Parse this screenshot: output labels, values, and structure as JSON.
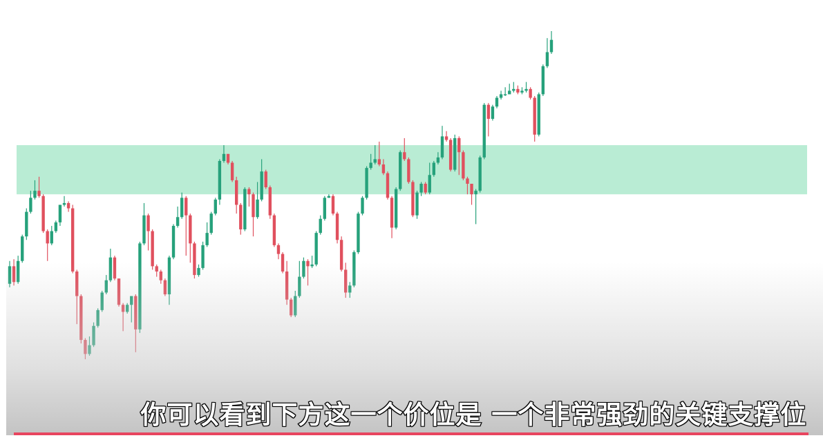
{
  "subtitle": "你可以看到下方这一个价位是 一个非常强劲的关键支撑位",
  "colors": {
    "up": "#26a17b",
    "down": "#e0505e",
    "zone": "#b9ecd4",
    "wick_up": "#26a17b",
    "wick_down": "#e0505e",
    "bar": "#e8455f"
  },
  "chart_data": {
    "type": "candlestick",
    "ylim": [
      0,
      100
    ],
    "zone": {
      "low": 62.5,
      "high": 76.5
    },
    "candles": [
      [
        37.0,
        42.0,
        43.5,
        36.0
      ],
      [
        42.0,
        37.5,
        44.0,
        36.5
      ],
      [
        37.5,
        43.5,
        45.0,
        37.0
      ],
      [
        43.5,
        50.5,
        51.0,
        43.0
      ],
      [
        50.5,
        57.5,
        58.5,
        49.5
      ],
      [
        57.5,
        61.5,
        63.5,
        57.0
      ],
      [
        61.5,
        63.5,
        66.5,
        61.0
      ],
      [
        63.5,
        62.0,
        67.5,
        61.5
      ],
      [
        62.0,
        52.0,
        62.5,
        51.5
      ],
      [
        52.0,
        48.5,
        52.5,
        43.5
      ],
      [
        48.5,
        52.0,
        53.5,
        48.0
      ],
      [
        52.0,
        54.5,
        55.0,
        51.5
      ],
      [
        54.5,
        59.5,
        59.5,
        53.5
      ],
      [
        59.5,
        60.0,
        62.0,
        59.0
      ],
      [
        60.0,
        58.5,
        60.5,
        57.5
      ],
      [
        58.5,
        40.5,
        59.5,
        40.0
      ],
      [
        40.5,
        33.5,
        41.0,
        25.5
      ],
      [
        33.5,
        21.0,
        34.0,
        20.0
      ],
      [
        21.0,
        17.0,
        21.5,
        15.5
      ],
      [
        17.0,
        19.5,
        22.0,
        16.5
      ],
      [
        19.5,
        25.0,
        26.0,
        19.0
      ],
      [
        25.0,
        29.5,
        30.0,
        24.5
      ],
      [
        29.5,
        34.5,
        35.0,
        29.0
      ],
      [
        34.5,
        38.0,
        39.5,
        34.0
      ],
      [
        38.0,
        44.5,
        47.0,
        37.5
      ],
      [
        44.5,
        38.5,
        45.0,
        38.0
      ],
      [
        38.5,
        31.0,
        38.5,
        30.5
      ],
      [
        31.0,
        29.0,
        31.5,
        23.5
      ],
      [
        29.0,
        31.0,
        31.5,
        28.5
      ],
      [
        31.0,
        33.5,
        33.5,
        26.0
      ],
      [
        33.5,
        24.0,
        34.0,
        17.5
      ],
      [
        24.0,
        48.5,
        49.0,
        23.0
      ],
      [
        48.5,
        56.5,
        60.0,
        48.0
      ],
      [
        56.5,
        52.0,
        57.0,
        46.5
      ],
      [
        52.0,
        42.0,
        52.5,
        41.0
      ],
      [
        42.0,
        40.5,
        42.5,
        39.0
      ],
      [
        40.5,
        38.0,
        41.0,
        37.0
      ],
      [
        38.0,
        34.0,
        38.5,
        33.5
      ],
      [
        34.0,
        44.5,
        45.0,
        31.0
      ],
      [
        44.5,
        53.5,
        54.0,
        44.0
      ],
      [
        53.5,
        56.0,
        59.0,
        53.0
      ],
      [
        56.0,
        61.5,
        63.0,
        55.5
      ],
      [
        61.5,
        56.5,
        62.0,
        45.0
      ],
      [
        56.5,
        48.5,
        57.0,
        43.0
      ],
      [
        48.5,
        39.5,
        49.0,
        38.5
      ],
      [
        39.5,
        41.5,
        42.5,
        39.0
      ],
      [
        41.5,
        48.0,
        49.0,
        41.0
      ],
      [
        48.0,
        51.5,
        54.5,
        47.5
      ],
      [
        51.5,
        57.0,
        57.5,
        51.0
      ],
      [
        57.0,
        61.0,
        61.5,
        56.5
      ],
      [
        61.0,
        72.0,
        72.5,
        59.5
      ],
      [
        72.0,
        74.0,
        76.5,
        71.5
      ],
      [
        74.0,
        71.5,
        74.0,
        71.0
      ],
      [
        71.5,
        66.5,
        72.0,
        66.0
      ],
      [
        66.5,
        59.5,
        67.5,
        57.0
      ],
      [
        59.5,
        52.5,
        60.0,
        51.0
      ],
      [
        52.5,
        64.0,
        64.5,
        52.0
      ],
      [
        64.0,
        62.5,
        64.5,
        59.0
      ],
      [
        62.5,
        56.0,
        63.0,
        50.5
      ],
      [
        56.0,
        61.0,
        66.0,
        55.5
      ],
      [
        61.0,
        69.0,
        72.5,
        60.5
      ],
      [
        69.0,
        64.5,
        69.5,
        64.0
      ],
      [
        64.5,
        56.5,
        65.0,
        55.5
      ],
      [
        56.5,
        48.0,
        57.0,
        47.5
      ],
      [
        48.0,
        45.5,
        48.5,
        44.0
      ],
      [
        45.5,
        40.5,
        46.0,
        40.0
      ],
      [
        40.5,
        32.5,
        43.5,
        31.0
      ],
      [
        32.5,
        28.0,
        33.0,
        27.5
      ],
      [
        28.0,
        33.5,
        35.0,
        27.5
      ],
      [
        33.5,
        39.0,
        43.5,
        33.0
      ],
      [
        39.0,
        43.5,
        44.5,
        38.5
      ],
      [
        43.5,
        42.0,
        44.0,
        36.5
      ],
      [
        42.0,
        42.5,
        45.0,
        41.5
      ],
      [
        42.5,
        51.5,
        52.0,
        42.0
      ],
      [
        51.5,
        55.5,
        56.5,
        51.0
      ],
      [
        55.5,
        61.5,
        62.0,
        55.0
      ],
      [
        61.5,
        62.0,
        62.5,
        61.5
      ],
      [
        62.0,
        57.0,
        62.5,
        56.5
      ],
      [
        57.0,
        49.5,
        57.5,
        48.5
      ],
      [
        49.5,
        41.0,
        50.5,
        40.5
      ],
      [
        41.0,
        34.5,
        43.0,
        33.0
      ],
      [
        34.5,
        36.5,
        37.5,
        33.0
      ],
      [
        36.5,
        46.0,
        46.5,
        36.0
      ],
      [
        46.0,
        57.0,
        57.5,
        45.5
      ],
      [
        57.0,
        61.5,
        62.0,
        56.5
      ],
      [
        61.5,
        70.0,
        70.5,
        61.0
      ],
      [
        70.0,
        71.5,
        74.0,
        69.5
      ],
      [
        71.5,
        72.5,
        76.5,
        71.0
      ],
      [
        72.5,
        71.0,
        77.5,
        70.5
      ],
      [
        71.0,
        68.5,
        72.5,
        68.0
      ],
      [
        68.5,
        61.5,
        69.0,
        61.0
      ],
      [
        61.5,
        53.0,
        62.0,
        50.0
      ],
      [
        53.0,
        64.0,
        64.5,
        52.5
      ],
      [
        64.0,
        74.5,
        75.0,
        63.5
      ],
      [
        74.5,
        72.5,
        78.5,
        72.0
      ],
      [
        72.5,
        66.0,
        73.0,
        65.5
      ],
      [
        66.0,
        56.5,
        66.5,
        56.0
      ],
      [
        56.5,
        63.0,
        63.5,
        55.5
      ],
      [
        63.0,
        65.5,
        66.0,
        62.0
      ],
      [
        65.5,
        63.0,
        66.0,
        62.5
      ],
      [
        63.0,
        68.0,
        71.5,
        62.5
      ],
      [
        68.0,
        71.5,
        72.0,
        67.5
      ],
      [
        71.5,
        73.0,
        74.5,
        71.0
      ],
      [
        73.0,
        79.0,
        82.0,
        72.5
      ],
      [
        79.0,
        78.0,
        80.5,
        77.5
      ],
      [
        78.0,
        69.5,
        78.5,
        69.0
      ],
      [
        69.5,
        78.5,
        79.5,
        69.0
      ],
      [
        78.5,
        74.5,
        79.0,
        68.0
      ],
      [
        74.5,
        67.0,
        75.0,
        66.5
      ],
      [
        67.0,
        65.5,
        67.5,
        62.5
      ],
      [
        65.5,
        62.5,
        65.5,
        59.5
      ],
      [
        62.5,
        63.5,
        64.0,
        54.0
      ],
      [
        63.5,
        73.0,
        73.5,
        63.0
      ],
      [
        73.0,
        88.0,
        88.5,
        72.5
      ],
      [
        88.0,
        84.0,
        88.5,
        79.0
      ],
      [
        84.0,
        87.5,
        88.0,
        83.5
      ],
      [
        87.5,
        90.0,
        90.5,
        87.0
      ],
      [
        90.0,
        91.0,
        92.0,
        89.5
      ],
      [
        91.0,
        91.0,
        93.0,
        90.5
      ],
      [
        91.0,
        92.0,
        94.0,
        91.0
      ],
      [
        92.0,
        92.5,
        94.5,
        91.5
      ],
      [
        92.5,
        91.5,
        93.5,
        91.0
      ],
      [
        91.5,
        92.0,
        93.0,
        91.0
      ],
      [
        92.0,
        92.5,
        94.5,
        91.5
      ],
      [
        92.5,
        90.0,
        93.0,
        89.5
      ],
      [
        90.0,
        79.5,
        90.5,
        77.5
      ],
      [
        79.5,
        91.0,
        91.5,
        79.0
      ],
      [
        91.0,
        99.0,
        99.5,
        90.5
      ],
      [
        99.0,
        103.0,
        107.0,
        98.5
      ],
      [
        103.0,
        106.5,
        109.0,
        102.5
      ]
    ]
  }
}
